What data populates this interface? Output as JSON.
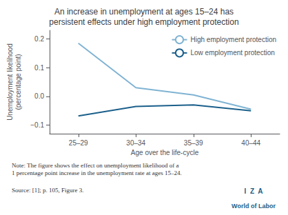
{
  "chart_data": {
    "type": "line",
    "title": "An increase in unemployment at ages 15–24 has\npersistent effects under high employment protection",
    "xlabel": "Age over the life-cycle",
    "ylabel": "Unemployment likelihood\n(percentage point)",
    "categories": [
      "25–29",
      "30–34",
      "35–39",
      "40–44"
    ],
    "series": [
      {
        "name": "High employment protection",
        "color": "#7fb3d3",
        "values": [
          0.185,
          0.03,
          0.005,
          -0.045
        ]
      },
      {
        "name": "Low employment protection",
        "color": "#1a5f8a",
        "values": [
          -0.068,
          -0.035,
          -0.03,
          -0.05
        ]
      }
    ],
    "ylim": [
      -0.13,
      0.23
    ],
    "yticks": [
      {
        "value": -0.1,
        "label": "−0.1"
      },
      {
        "value": 0.0,
        "label": "0.0"
      },
      0.1,
      0.2
    ],
    "grid": false,
    "legend": "upper right",
    "annotations": [
      {
        "text": "Note: The figure shows the effect on unemployment likelihood of a\n1 percentage point increase in the unemployment rate at ages 15–24."
      },
      {
        "text": "Source: [1]; p. 105, Figure 3."
      },
      {
        "text": "I  Z  A",
        "color": "#1a5f8a"
      },
      {
        "text": "World of Labor",
        "color": "#1a5f8a"
      }
    ]
  }
}
